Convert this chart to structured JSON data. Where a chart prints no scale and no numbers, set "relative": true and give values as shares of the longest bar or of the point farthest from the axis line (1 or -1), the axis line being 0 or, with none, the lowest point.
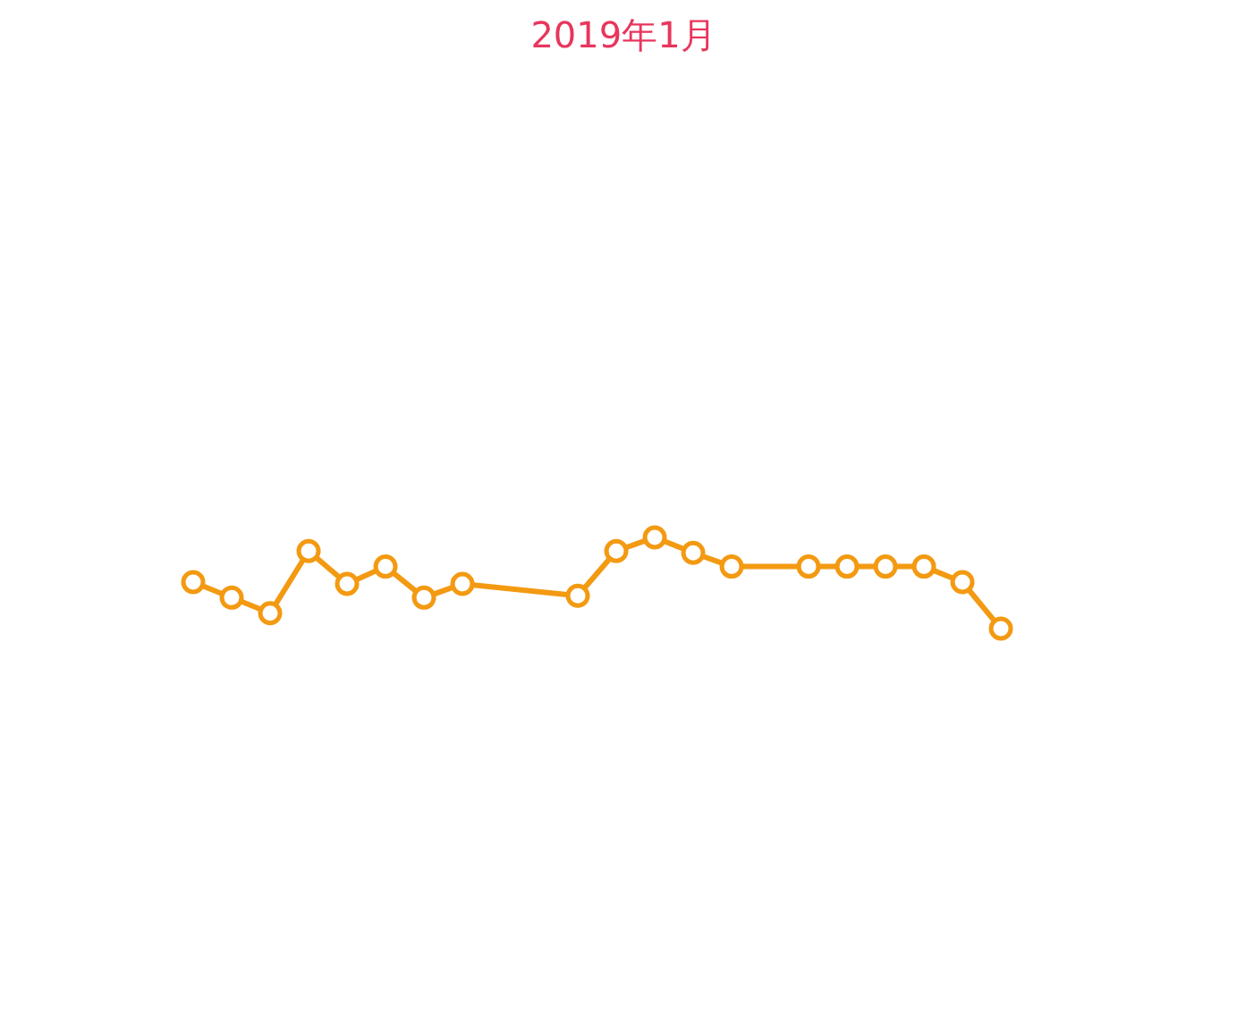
{
  "chart_data": {
    "type": "line",
    "title": "2019年1月",
    "relative": true,
    "categories": [
      null,
      null,
      null,
      null,
      null,
      null,
      null,
      null,
      null,
      null,
      null,
      null,
      null,
      null,
      null,
      null,
      null,
      null,
      null,
      null,
      null,
      null,
      null,
      null,
      null,
      null,
      null,
      null,
      null,
      null,
      null
    ],
    "series": [
      {
        "color": "#f39a12",
        "values": [
          null,
          null,
          null,
          0.51,
          0.34,
          0.17,
          0.85,
          0.49,
          0.68,
          0.34,
          0.49,
          null,
          null,
          0.36,
          0.85,
          1,
          0.83,
          0.68,
          null,
          0.68,
          0.68,
          0.68,
          0.68,
          0.51,
          0,
          null,
          null,
          null,
          null,
          null,
          null
        ]
      }
    ],
    "marker": "circle",
    "line_style": "solid",
    "tick_labels": false
  }
}
